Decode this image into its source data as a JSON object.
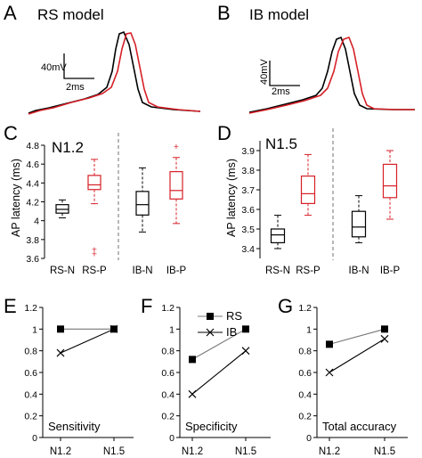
{
  "panels": {
    "A": {
      "letter": "A",
      "title": "RS model",
      "scale": {
        "voltage": "40mV",
        "time": "2ms"
      }
    },
    "B": {
      "letter": "B",
      "title": "IB model",
      "scale": {
        "voltage": "40mV",
        "time": "2ms"
      }
    },
    "C": {
      "letter": "C",
      "inset": "N1.2"
    },
    "D": {
      "letter": "D",
      "inset": "N1.5"
    },
    "E": {
      "letter": "E"
    },
    "F": {
      "letter": "F"
    },
    "G": {
      "letter": "G"
    }
  },
  "colors": {
    "rs_trace": "#000000",
    "ib_trace": "#d62027",
    "p_box": "#d62027",
    "n_box": "#000000",
    "divider": "#888888"
  },
  "chart_data": [
    {
      "panel": "C",
      "type": "box",
      "ylabel": "AP latency (ms)",
      "ylim": [
        3.6,
        4.8
      ],
      "yticks": [
        "3.6",
        "3.8",
        "4",
        "4.2",
        "4.4",
        "4.6",
        "4.8"
      ],
      "categories": [
        "RS-N",
        "RS-P",
        "IB-N",
        "IB-P"
      ],
      "boxes": [
        {
          "category": "RS-N",
          "color": "black",
          "min": 4.03,
          "q1": 4.08,
          "median": 4.12,
          "q3": 4.17,
          "max": 4.22,
          "outliers": []
        },
        {
          "category": "RS-P",
          "color": "red",
          "min": 4.18,
          "q1": 4.33,
          "median": 4.38,
          "q3": 4.48,
          "max": 4.65,
          "outliers": [
            3.7,
            3.65
          ]
        },
        {
          "category": "IB-N",
          "color": "black",
          "min": 3.88,
          "q1": 4.06,
          "median": 4.17,
          "q3": 4.31,
          "max": 4.56,
          "outliers": []
        },
        {
          "category": "IB-P",
          "color": "red",
          "min": 3.97,
          "q1": 4.23,
          "median": 4.32,
          "q3": 4.52,
          "max": 4.67,
          "outliers": [
            4.79
          ]
        }
      ]
    },
    {
      "panel": "D",
      "type": "box",
      "ylabel": "AP latency (ms)",
      "ylim": [
        3.35,
        3.95
      ],
      "yticks": [
        "3.4",
        "3.5",
        "3.6",
        "3.7",
        "3.8",
        "3.9"
      ],
      "categories": [
        "RS-N",
        "RS-P",
        "IB-N",
        "IB-P"
      ],
      "boxes": [
        {
          "category": "RS-N",
          "color": "black",
          "min": 3.4,
          "q1": 3.43,
          "median": 3.47,
          "q3": 3.5,
          "max": 3.57,
          "outliers": []
        },
        {
          "category": "RS-P",
          "color": "red",
          "min": 3.57,
          "q1": 3.63,
          "median": 3.68,
          "q3": 3.77,
          "max": 3.88,
          "outliers": []
        },
        {
          "category": "IB-N",
          "color": "black",
          "min": 3.43,
          "q1": 3.46,
          "median": 3.51,
          "q3": 3.59,
          "max": 3.67,
          "outliers": []
        },
        {
          "category": "IB-P",
          "color": "red",
          "min": 3.55,
          "q1": 3.66,
          "median": 3.72,
          "q3": 3.83,
          "max": 3.9,
          "outliers": []
        }
      ]
    },
    {
      "panel": "E",
      "type": "line",
      "title": "Sensitivity",
      "categories": [
        "N1.2",
        "N1.5"
      ],
      "ylim": [
        0,
        1.2
      ],
      "yticks": [
        "0",
        "0.2",
        "0.4",
        "0.6",
        "0.8",
        "1",
        "1.2"
      ],
      "series": [
        {
          "marker": "square",
          "values": [
            1.0,
            1.0
          ]
        },
        {
          "marker": "x",
          "values": [
            0.78,
            1.0
          ]
        }
      ]
    },
    {
      "panel": "F",
      "type": "line",
      "title": "Specificity",
      "categories": [
        "N1.2",
        "N1.5"
      ],
      "ylim": [
        0,
        1.2
      ],
      "yticks": [
        "0",
        "0.2",
        "0.4",
        "0.6",
        "0.8",
        "1",
        "1.2"
      ],
      "series": [
        {
          "name": "RS",
          "marker": "square",
          "values": [
            0.72,
            1.0
          ]
        },
        {
          "name": "IB",
          "marker": "x",
          "values": [
            0.4,
            0.8
          ]
        }
      ]
    },
    {
      "panel": "G",
      "type": "line",
      "title": "Total accuracy",
      "categories": [
        "N1.2",
        "N1.5"
      ],
      "ylim": [
        0,
        1.2
      ],
      "yticks": [
        "0",
        "0.2",
        "0.4",
        "0.6",
        "0.8",
        "1",
        "1.2"
      ],
      "series": [
        {
          "marker": "square",
          "values": [
            0.86,
            1.0
          ]
        },
        {
          "marker": "x",
          "values": [
            0.6,
            0.91
          ]
        }
      ]
    }
  ]
}
